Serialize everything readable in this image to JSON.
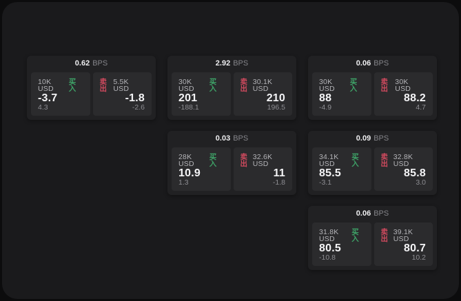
{
  "labels": {
    "buy": "买入",
    "sell": "卖出",
    "bps_unit": "BPS"
  },
  "colors": {
    "buy_green": "#3ea267",
    "sell_red": "#cf4a5e",
    "card_bg": "#212123",
    "panel_bg": "#2b2b2d",
    "frame_bg": "#1a1a1c",
    "canvas_bg": "#0c0c0d"
  },
  "cards": [
    {
      "col": 1,
      "row": 1,
      "bps": "0.62",
      "buy": {
        "size": "10K USD",
        "value": "-3.7",
        "secondary": "4.3"
      },
      "sell": {
        "size": "5.5K USD",
        "value": "-1.8",
        "secondary": "-2.6"
      }
    },
    {
      "col": 2,
      "row": 1,
      "bps": "2.92",
      "buy": {
        "size": "30K USD",
        "value": "201",
        "secondary": "-188.1"
      },
      "sell": {
        "size": "30.1K USD",
        "value": "210",
        "secondary": "196.5"
      }
    },
    {
      "col": 3,
      "row": 1,
      "bps": "0.06",
      "buy": {
        "size": "30K USD",
        "value": "88",
        "secondary": "-4.9"
      },
      "sell": {
        "size": "30K USD",
        "value": "88.2",
        "secondary": "4.7"
      }
    },
    {
      "col": 2,
      "row": 2,
      "bps": "0.03",
      "buy": {
        "size": "28K USD",
        "value": "10.9",
        "secondary": "1.3"
      },
      "sell": {
        "size": "32.6K USD",
        "value": "11",
        "secondary": "-1.8"
      }
    },
    {
      "col": 3,
      "row": 2,
      "bps": "0.09",
      "buy": {
        "size": "34.1K USD",
        "value": "85.5",
        "secondary": "-3.1"
      },
      "sell": {
        "size": "32.8K USD",
        "value": "85.8",
        "secondary": "3.0"
      }
    },
    {
      "col": 3,
      "row": 3,
      "bps": "0.06",
      "buy": {
        "size": "31.8K USD",
        "value": "80.5",
        "secondary": "-10.8"
      },
      "sell": {
        "size": "39.1K USD",
        "value": "80.7",
        "secondary": "10.2"
      }
    }
  ]
}
